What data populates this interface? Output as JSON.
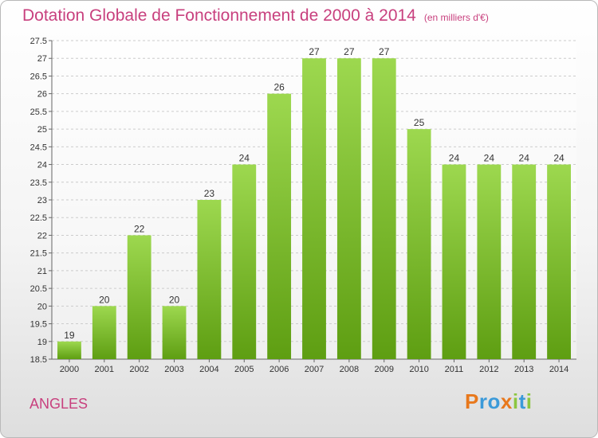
{
  "title": "Dotation Globale de Fonctionnement de 2000 à 2014",
  "unit_note": "(en milliers d'€)",
  "town": "ANGLES",
  "logo": {
    "p": "P",
    "r": "r",
    "o": "o",
    "x": "x",
    "i1": "i",
    "t": "t",
    "i2": "i"
  },
  "colors": {
    "bar_light": "#9dd84f",
    "bar_dark": "#5e9e12",
    "title": "#c8407e"
  },
  "chart_data": {
    "type": "bar",
    "categories": [
      "2000",
      "2001",
      "2002",
      "2003",
      "2004",
      "2005",
      "2006",
      "2007",
      "2008",
      "2009",
      "2010",
      "2011",
      "2012",
      "2013",
      "2014"
    ],
    "values": [
      19,
      20,
      22,
      20,
      23,
      24,
      26,
      27,
      27,
      27,
      25,
      24,
      24,
      24,
      24
    ],
    "ylim": [
      18.5,
      27.5
    ],
    "yticks": [
      18.5,
      19,
      19.5,
      20,
      20.5,
      21,
      21.5,
      22,
      22.5,
      23,
      23.5,
      24,
      24.5,
      25,
      25.5,
      26,
      26.5,
      27,
      27.5
    ],
    "grid": true,
    "xlabel": "",
    "ylabel": ""
  }
}
